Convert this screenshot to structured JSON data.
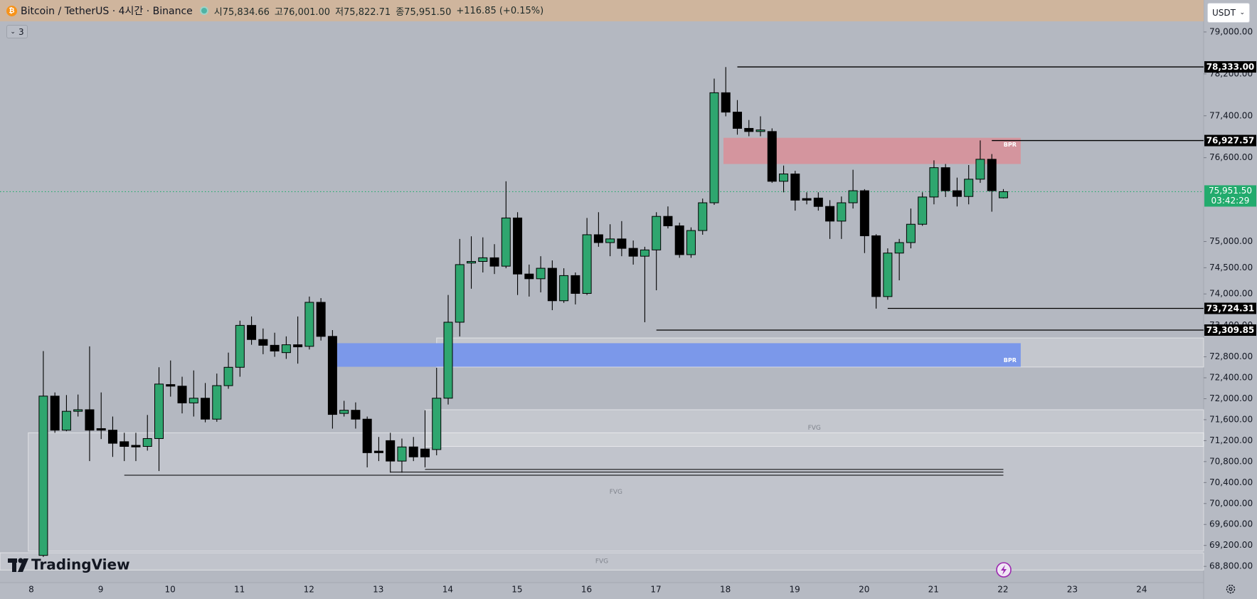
{
  "header": {
    "symbol": "Bitcoin / TetherUS · 4시간 · Binance",
    "ohlc": [
      {
        "label": "시",
        "value": "75,834.66"
      },
      {
        "label": "고",
        "value": "76,001.00"
      },
      {
        "label": "저",
        "value": "75,822.71"
      },
      {
        "label": "종",
        "value": "75,951.50"
      }
    ],
    "change": "+116.85 (+0.15%)",
    "indicators": "3",
    "currency": "USDT"
  },
  "watermark": "TradingView",
  "chart_data": {
    "type": "candlestick",
    "x_labels": [
      "8",
      "9",
      "10",
      "11",
      "12",
      "13",
      "14",
      "15",
      "16",
      "17",
      "18",
      "19",
      "20",
      "21",
      "22",
      "23",
      "24"
    ],
    "candles": {
      "open": [
        69010,
        72050,
        71400,
        71760,
        71790,
        71430,
        71400,
        71180,
        71110,
        71090,
        71240,
        72270,
        72240,
        71920,
        72010,
        71610,
        72250,
        72600,
        73400,
        73130,
        73020,
        72880,
        73030,
        73000,
        73840,
        73190,
        71720,
        71780,
        71610,
        71000,
        71200,
        70810,
        71080,
        71040,
        71030,
        72010,
        73460,
        74590,
        74620,
        74690,
        74530,
        75450,
        74380,
        74290,
        74490,
        73870,
        74350,
        74010,
        75130,
        74980,
        75050,
        74870,
        74720,
        74840,
        75480,
        75300,
        74750,
        75210,
        75740,
        77840,
        77470,
        77160,
        77100,
        77100,
        76150,
        76290,
        75820,
        75830,
        75670,
        75390,
        75740,
        75970,
        75110,
        73950,
        74780,
        74980,
        75330,
        75850,
        76410,
        75970,
        75860,
        76190,
        76570,
        75834.66
      ],
      "high": [
        72910,
        72120,
        72070,
        72080,
        73000,
        72120,
        71660,
        71350,
        71350,
        71690,
        72600,
        72730,
        72420,
        72540,
        72300,
        72480,
        72880,
        73490,
        73570,
        73340,
        73260,
        73190,
        73570,
        73950,
        73920,
        73310,
        71960,
        71930,
        71660,
        71270,
        71350,
        71240,
        71270,
        71780,
        72590,
        73980,
        75050,
        75100,
        75080,
        74950,
        76150,
        75560,
        74560,
        74720,
        74640,
        74490,
        74410,
        75450,
        75560,
        75330,
        75390,
        75020,
        74900,
        75560,
        75670,
        75360,
        75270,
        75820,
        78110,
        78330,
        77700,
        77320,
        77390,
        77160,
        76450,
        76350,
        75940,
        75940,
        75790,
        75860,
        76370,
        76000,
        75140,
        74870,
        75050,
        75630,
        75940,
        76550,
        76480,
        76220,
        76460,
        76930,
        76670,
        76001
      ],
      "low": [
        68980,
        71350,
        71380,
        71660,
        70810,
        71230,
        70890,
        70810,
        70810,
        71010,
        70620,
        72040,
        71720,
        71660,
        71550,
        71560,
        72190,
        72420,
        73030,
        72850,
        72800,
        72760,
        72670,
        72940,
        73110,
        71430,
        71660,
        71430,
        70690,
        70810,
        70590,
        70590,
        70810,
        70690,
        70920,
        71890,
        73190,
        74100,
        74410,
        74380,
        74490,
        73980,
        73950,
        74030,
        73690,
        73830,
        73800,
        73980,
        74900,
        74720,
        74720,
        74560,
        73460,
        74070,
        75250,
        74690,
        74690,
        75130,
        75700,
        77390,
        77040,
        77010,
        77010,
        76120,
        75940,
        75590,
        75710,
        75590,
        75050,
        75050,
        75630,
        74780,
        73720,
        73890,
        74260,
        74870,
        75300,
        75710,
        75850,
        75670,
        75710,
        76120,
        75570,
        75822.71
      ],
      "close": [
        72050,
        71400,
        71760,
        71790,
        71400,
        71400,
        71150,
        71090,
        71080,
        71240,
        72280,
        72240,
        71920,
        72010,
        71610,
        72250,
        72600,
        73400,
        73130,
        73020,
        72910,
        73030,
        72990,
        73840,
        73190,
        71700,
        71780,
        71610,
        70970,
        70970,
        70810,
        71080,
        70890,
        70890,
        72010,
        73460,
        74560,
        74620,
        74690,
        74530,
        75450,
        74380,
        74290,
        74490,
        73870,
        74350,
        74010,
        75130,
        74980,
        75050,
        74870,
        74720,
        74840,
        75480,
        75300,
        74750,
        75210,
        75740,
        77840,
        77470,
        77160,
        77100,
        77130,
        76150,
        76290,
        75790,
        75790,
        75670,
        75390,
        75740,
        75970,
        75110,
        73950,
        74780,
        74980,
        75330,
        75850,
        76410,
        75970,
        75860,
        76190,
        76570,
        75970,
        75951.5
      ]
    },
    "up_color": "#2fa66f",
    "down_color": "#000000",
    "ylim": [
      68490,
      79610
    ],
    "yticks": [
      {
        "value": 79000,
        "label": "79,000.00"
      },
      {
        "value": 78200,
        "label": "78,200.00"
      },
      {
        "value": 77400,
        "label": "77,400.00"
      },
      {
        "value": 76600,
        "label": "76,600.00"
      },
      {
        "value": 75000,
        "label": "75,000.00"
      },
      {
        "value": 74500,
        "label": "74,500.00"
      },
      {
        "value": 74000,
        "label": "74,000.00"
      },
      {
        "value": 73400,
        "label": "73,400.00"
      },
      {
        "value": 72800,
        "label": "72,800.00"
      },
      {
        "value": 72400,
        "label": "72,400.00"
      },
      {
        "value": 72000,
        "label": "72,000.00"
      },
      {
        "value": 71600,
        "label": "71,600.00"
      },
      {
        "value": 71200,
        "label": "71,200.00"
      },
      {
        "value": 70800,
        "label": "70,800.00"
      },
      {
        "value": 70400,
        "label": "70,400.00"
      },
      {
        "value": 70000,
        "label": "70,000.00"
      },
      {
        "value": 69600,
        "label": "69,600.00"
      },
      {
        "value": 69200,
        "label": "69,200.00"
      },
      {
        "value": 68800,
        "label": "68,800.00"
      }
    ],
    "levels": [
      {
        "value": 78333,
        "label": "78,333.00"
      },
      {
        "value": 76927.57,
        "label": "76,927.57"
      },
      {
        "value": 73724.31,
        "label": "73,724.31"
      },
      {
        "value": 73309.85,
        "label": "73,309.85"
      }
    ],
    "current_price": {
      "value": 75951.5,
      "label": "75,951.50",
      "countdown": "03:42:29",
      "color": "#22ab6d"
    },
    "support_lines": [
      70540,
      70600,
      70650
    ],
    "zones": [
      {
        "label": "BPR",
        "top": 76980,
        "bottom": 76480,
        "color": "#d4959e"
      },
      {
        "label": "FVG",
        "top": 73160,
        "bottom": 72605,
        "color": "rgba(255,255,255,0.22)"
      },
      {
        "label": "BPR",
        "top": 73060,
        "bottom": 72610,
        "color": "#7b98ea"
      },
      {
        "label": "FVG",
        "top": 71790,
        "bottom": 71090,
        "color": "rgba(255,255,255,0.22)"
      },
      {
        "label": "FVG",
        "top": 71350,
        "bottom": 69090,
        "color": "rgba(255,255,255,0.18)"
      },
      {
        "label": "FVG",
        "top": 69060,
        "bottom": 68730,
        "color": "rgba(255,255,255,0.18)"
      }
    ]
  }
}
